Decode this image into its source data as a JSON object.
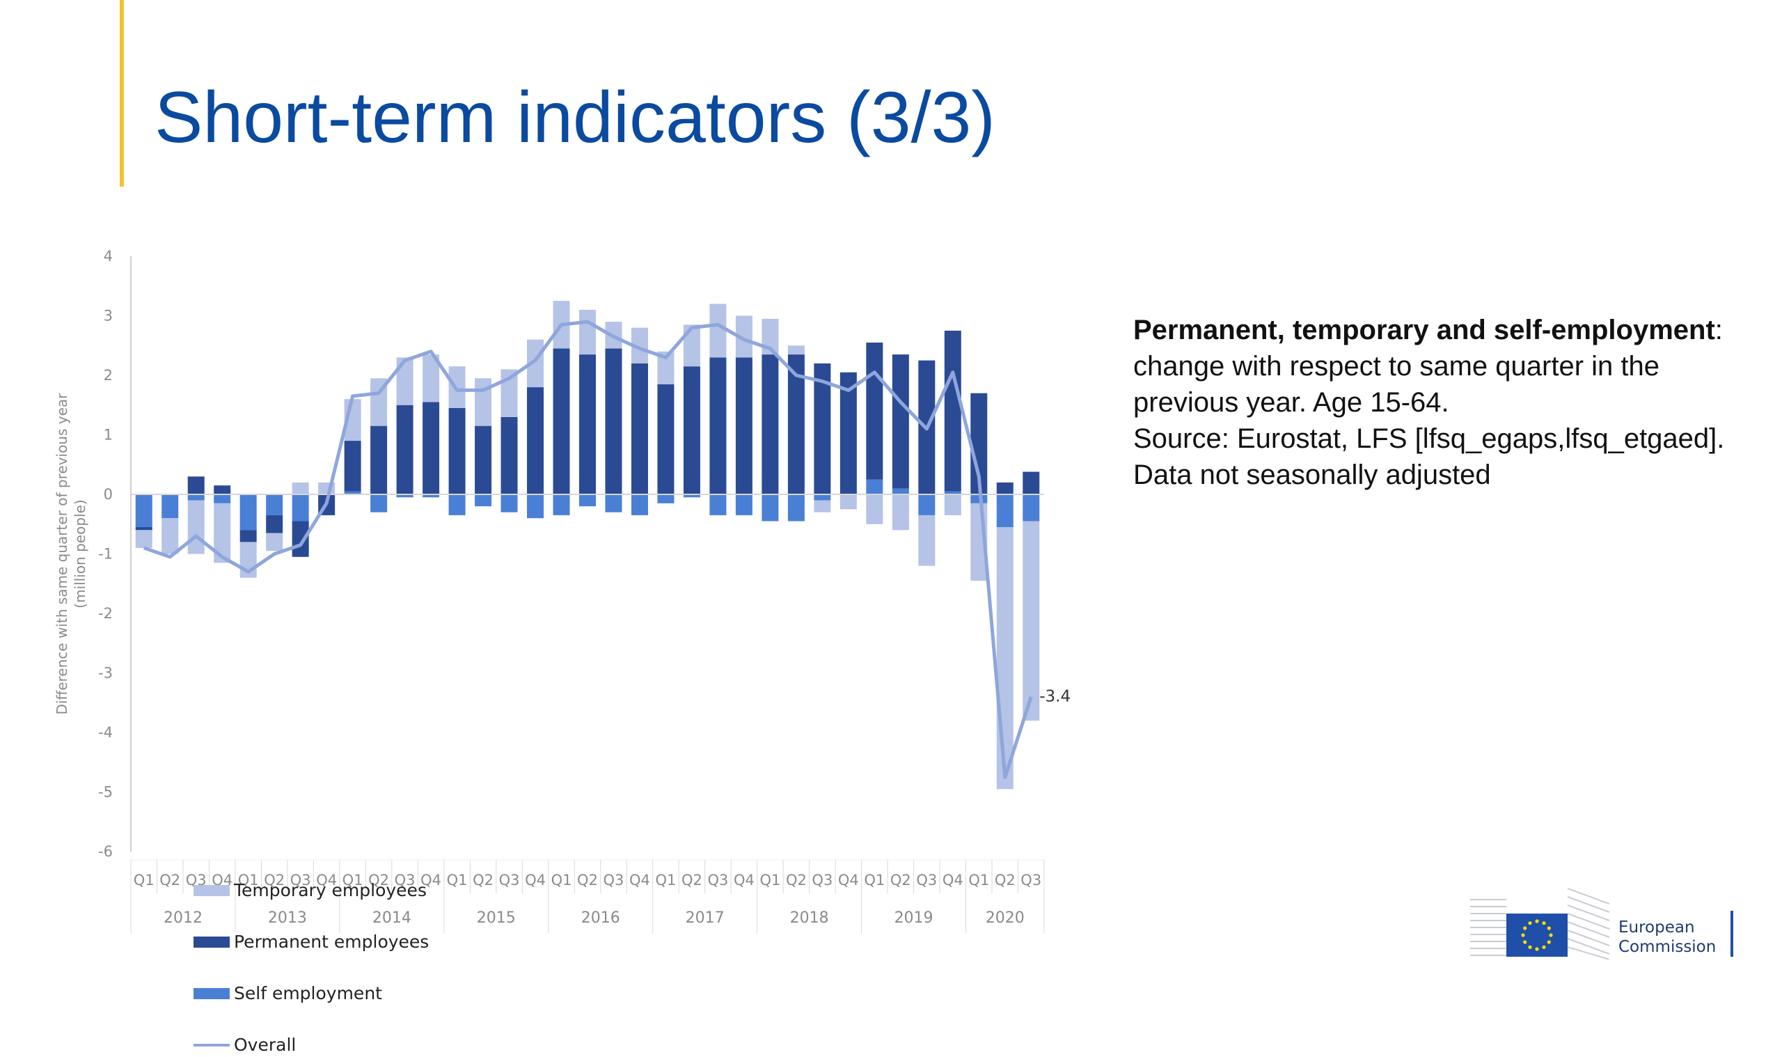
{
  "slide": {
    "title": "Short-term indicators (3/3)"
  },
  "note": {
    "heading": "Permanent, temporary and self-employment",
    "heading_suffix": ":",
    "lines": [
      "change with respect to same quarter in the",
      "previous year. Age 15-64.",
      "Source: Eurostat, LFS [lfsq_egaps,lfsq_etgaed].",
      "Data not seasonally adjusted"
    ]
  },
  "logo": {
    "line1": "European",
    "line2": "Commission"
  },
  "colors": {
    "title": "#0a4aa0",
    "accent": "#f1c232",
    "temporary": "#b4c3e6",
    "permanent": "#2b4a94",
    "self": "#4a7fd6",
    "overall": "#8ea6dc"
  },
  "chart_data": {
    "type": "bar",
    "stacked": true,
    "ylabel": "Difference with same quarter of previous year",
    "ylabel2": "(million people)",
    "ylim": [
      -6,
      4
    ],
    "yticks": [
      -6,
      -5,
      -4,
      -3,
      -2,
      -1,
      0,
      1,
      2,
      3,
      4
    ],
    "grid": false,
    "legend_position": "bottom-left",
    "categories": [
      "Q1",
      "Q2",
      "Q3",
      "Q4",
      "Q1",
      "Q2",
      "Q3",
      "Q4",
      "Q1",
      "Q2",
      "Q3",
      "Q4",
      "Q1",
      "Q2",
      "Q3",
      "Q4",
      "Q1",
      "Q2",
      "Q3",
      "Q4",
      "Q1",
      "Q2",
      "Q3",
      "Q4",
      "Q1",
      "Q2",
      "Q3",
      "Q4",
      "Q1",
      "Q2",
      "Q3",
      "Q4",
      "Q1",
      "Q2",
      "Q3"
    ],
    "year_groups": [
      {
        "label": "2012",
        "count": 4
      },
      {
        "label": "2013",
        "count": 4
      },
      {
        "label": "2014",
        "count": 4
      },
      {
        "label": "2015",
        "count": 4
      },
      {
        "label": "2016",
        "count": 4
      },
      {
        "label": "2017",
        "count": 4
      },
      {
        "label": "2018",
        "count": 4
      },
      {
        "label": "2019",
        "count": 4
      },
      {
        "label": "2020",
        "count": 3
      }
    ],
    "series": [
      {
        "name": "Temporary employees",
        "kind": "bar",
        "values": [
          -0.3,
          -0.6,
          -0.9,
          -1.0,
          -0.6,
          -0.3,
          0.2,
          0.2,
          0.7,
          0.8,
          0.8,
          0.8,
          0.7,
          0.8,
          0.8,
          0.8,
          0.8,
          0.75,
          0.45,
          0.6,
          0.55,
          0.7,
          0.9,
          0.7,
          0.6,
          0.15,
          -0.2,
          -0.25,
          -0.5,
          -0.6,
          -0.85,
          -0.35,
          -1.3,
          -4.4,
          -3.35
        ]
      },
      {
        "name": "Permanent employees",
        "kind": "bar",
        "values": [
          -0.05,
          0.0,
          0.3,
          0.15,
          -0.2,
          -0.3,
          -0.6,
          -0.35,
          0.85,
          1.15,
          1.5,
          1.55,
          1.45,
          1.15,
          1.3,
          1.8,
          2.45,
          2.35,
          2.45,
          2.2,
          1.85,
          2.15,
          2.3,
          2.3,
          2.35,
          2.35,
          2.2,
          2.05,
          2.3,
          2.25,
          2.25,
          2.7,
          1.7,
          0.2,
          0.38
        ]
      },
      {
        "name": "Self employment",
        "kind": "bar",
        "values": [
          -0.55,
          -0.4,
          -0.1,
          -0.15,
          -0.6,
          -0.35,
          -0.45,
          0.0,
          0.05,
          -0.3,
          -0.05,
          -0.05,
          -0.35,
          -0.2,
          -0.3,
          -0.4,
          -0.35,
          -0.2,
          -0.3,
          -0.35,
          -0.15,
          -0.05,
          -0.35,
          -0.35,
          -0.45,
          -0.45,
          -0.1,
          0.0,
          0.25,
          0.1,
          -0.35,
          0.05,
          -0.15,
          -0.55,
          -0.45
        ]
      },
      {
        "name": "Overall",
        "kind": "line",
        "values": [
          -0.9,
          -1.05,
          -0.7,
          -1.05,
          -1.3,
          -1.0,
          -0.85,
          -0.15,
          1.65,
          1.7,
          2.25,
          2.4,
          1.75,
          1.75,
          1.95,
          2.25,
          2.85,
          2.9,
          2.65,
          2.45,
          2.3,
          2.8,
          2.85,
          2.6,
          2.45,
          2.0,
          1.9,
          1.75,
          2.05,
          1.55,
          1.1,
          2.05,
          0.3,
          -4.75,
          -3.4
        ]
      }
    ],
    "annotations": [
      {
        "series": "Overall",
        "index": 34,
        "text": "-3.4"
      }
    ]
  }
}
